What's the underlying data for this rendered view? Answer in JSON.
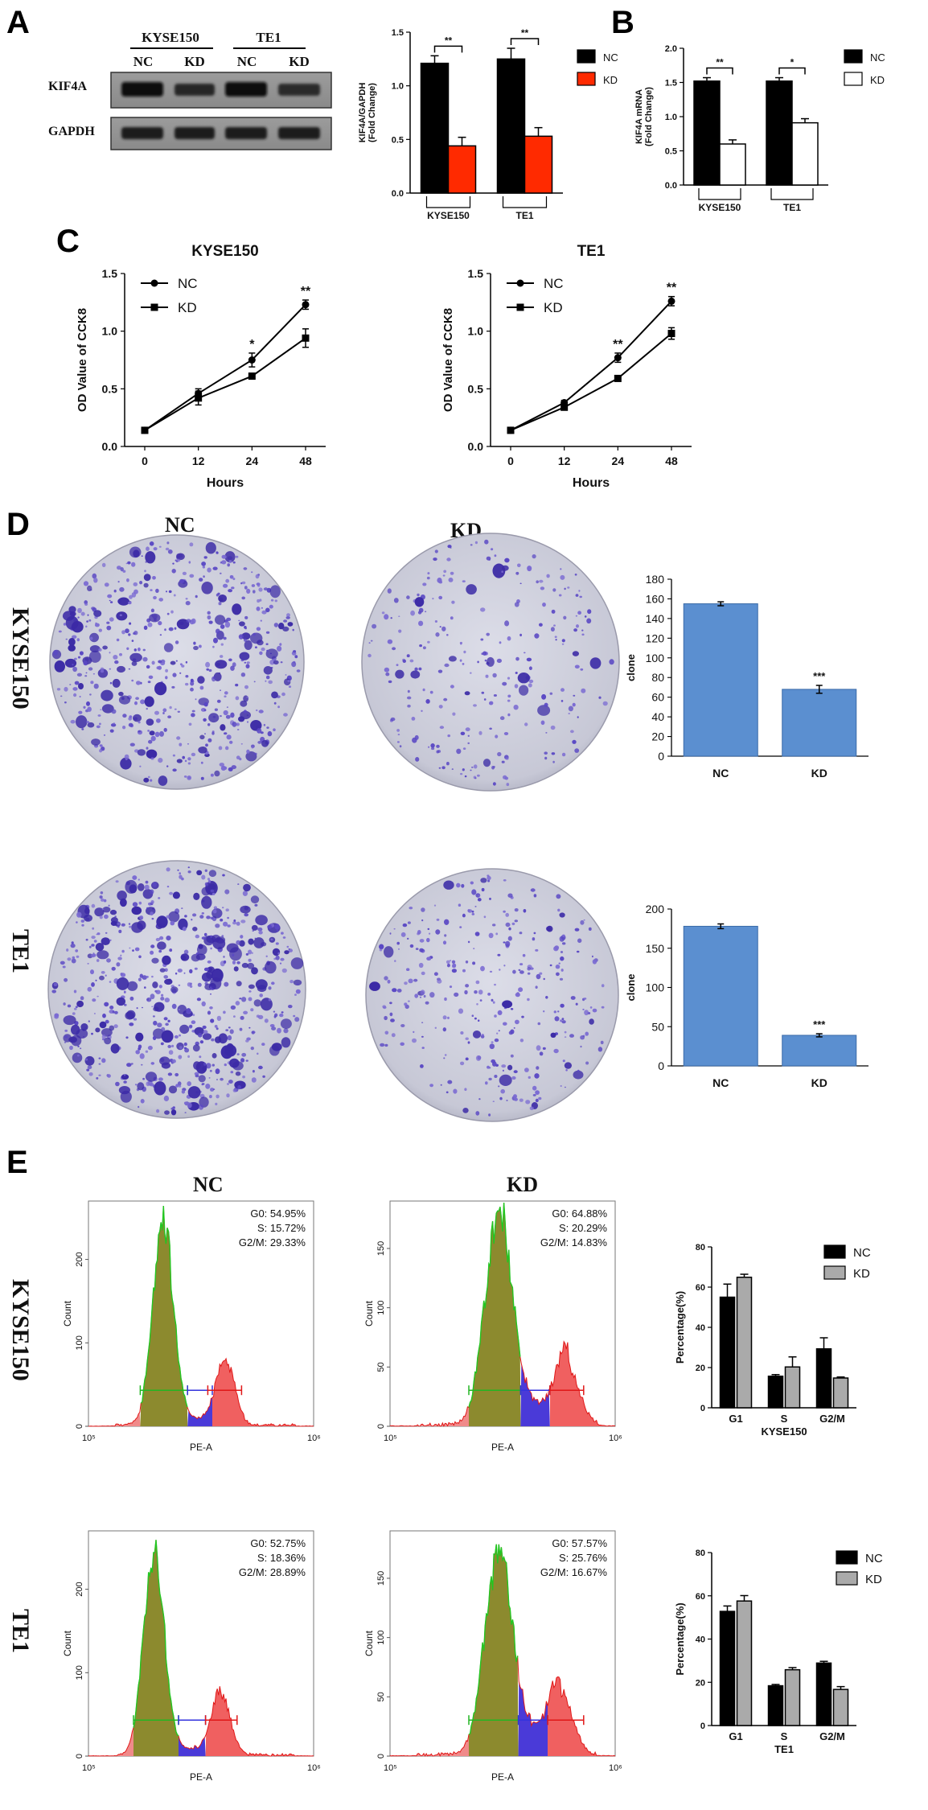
{
  "panels": {
    "A": "A",
    "B": "B",
    "C": "C",
    "D": "D",
    "E": "E"
  },
  "blot": {
    "groups": [
      "KYSE150",
      "TE1"
    ],
    "lanes": [
      "NC",
      "KD",
      "NC",
      "KD"
    ],
    "rows": [
      "KIF4A",
      "GAPDH"
    ]
  },
  "colonies": {
    "cols": [
      "NC",
      "KD"
    ],
    "rows": [
      "KYSE150",
      "TE1"
    ]
  },
  "flow": {
    "cols": [
      "NC",
      "KD"
    ],
    "rows": [
      "KYSE150",
      "TE1"
    ],
    "xlabel": "PE-A",
    "ylabel": "Count",
    "xtick_low": "10⁵",
    "xtick_high": "10⁶",
    "stats": [
      {
        "g0": "G0: 54.95%",
        "s": "S: 15.72%",
        "g2m": "G2/M: 29.33%"
      },
      {
        "g0": "G0: 64.88%",
        "s": "S: 20.29%",
        "g2m": "G2/M: 14.83%"
      },
      {
        "g0": "G0: 52.75%",
        "s": "S: 18.36%",
        "g2m": "G2/M: 28.89%"
      },
      {
        "g0": "G0: 57.57%",
        "s": "S: 25.76%",
        "g2m": "G2/M: 16.67%"
      }
    ],
    "yticks": [
      [
        "0",
        "100",
        "200"
      ],
      [
        "0",
        "50",
        "100",
        "150"
      ],
      [
        "0",
        "100",
        "200"
      ],
      [
        "0",
        "50",
        "100",
        "150"
      ]
    ]
  },
  "chart_data": [
    {
      "id": "A-bar",
      "type": "bar",
      "categories": [
        "KYSE150",
        "TE1"
      ],
      "series": [
        {
          "name": "NC",
          "values": [
            1.21,
            1.25
          ],
          "errors": [
            0.07,
            0.1
          ]
        },
        {
          "name": "KD",
          "values": [
            0.44,
            0.53
          ],
          "errors": [
            0.08,
            0.08
          ]
        }
      ],
      "ylabel": "KIF4A/GAPDH\n(Fold Change)",
      "yticks": [
        0.0,
        0.5,
        1.0,
        1.5
      ],
      "ylim": [
        0,
        1.5
      ],
      "significance": [
        "**",
        "**"
      ],
      "colors": {
        "NC": "#000000",
        "KD": "#ff2a00"
      }
    },
    {
      "id": "B-bar",
      "type": "bar",
      "categories": [
        "KYSE150",
        "TE1"
      ],
      "series": [
        {
          "name": "NC",
          "values": [
            1.52,
            1.52
          ],
          "errors": [
            0.05,
            0.05
          ]
        },
        {
          "name": "KD",
          "values": [
            0.6,
            0.91
          ],
          "errors": [
            0.06,
            0.06
          ]
        }
      ],
      "ylabel": "KIF4A mRNA\n(Fold Change)",
      "yticks": [
        0.0,
        0.5,
        1.0,
        1.5,
        2.0
      ],
      "ylim": [
        0,
        2.0
      ],
      "significance": [
        "**",
        "*"
      ],
      "colors": {
        "NC": "#000000",
        "KD": "#ffffff"
      }
    },
    {
      "id": "C-line-kyse",
      "type": "line",
      "title": "KYSE150",
      "x": [
        0,
        12,
        24,
        48
      ],
      "series": [
        {
          "name": "NC",
          "values": [
            0.14,
            0.46,
            0.75,
            1.23
          ],
          "errors": [
            0.02,
            0.04,
            0.06,
            0.04
          ]
        },
        {
          "name": "KD",
          "values": [
            0.14,
            0.42,
            0.61,
            0.94
          ],
          "errors": [
            0.02,
            0.06,
            0.02,
            0.08
          ]
        }
      ],
      "xlabel": "Hours",
      "ylabel": "OD Value of CCK8",
      "yticks": [
        0.0,
        0.5,
        1.0,
        1.5
      ],
      "ylim": [
        0,
        1.5
      ],
      "significance": [
        "",
        "",
        "*",
        "**"
      ]
    },
    {
      "id": "C-line-te1",
      "type": "line",
      "title": "TE1",
      "x": [
        0,
        12,
        24,
        48
      ],
      "series": [
        {
          "name": "NC",
          "values": [
            0.14,
            0.38,
            0.77,
            1.26
          ],
          "errors": [
            0.02,
            0.02,
            0.04,
            0.04
          ]
        },
        {
          "name": "KD",
          "values": [
            0.14,
            0.34,
            0.59,
            0.98
          ],
          "errors": [
            0.02,
            0.02,
            0.02,
            0.05
          ]
        }
      ],
      "xlabel": "Hours",
      "ylabel": "OD Value of CCK8",
      "yticks": [
        0.0,
        0.5,
        1.0,
        1.5
      ],
      "ylim": [
        0,
        1.5
      ],
      "significance": [
        "",
        "",
        "**",
        "**"
      ]
    },
    {
      "id": "D-bar-kyse",
      "type": "bar",
      "categories": [
        "NC",
        "KD"
      ],
      "values": [
        155,
        68
      ],
      "errors": [
        2,
        4
      ],
      "ylabel": "clone",
      "yticks": [
        0,
        20,
        40,
        60,
        80,
        100,
        120,
        140,
        160,
        180
      ],
      "ylim": [
        0,
        180
      ],
      "significance": [
        "",
        "***"
      ],
      "colors": {
        "bar": "#5b8fd0"
      }
    },
    {
      "id": "D-bar-te1",
      "type": "bar",
      "categories": [
        "NC",
        "KD"
      ],
      "values": [
        178,
        39
      ],
      "errors": [
        3,
        2
      ],
      "ylabel": "clone",
      "yticks": [
        0,
        50,
        100,
        150,
        200
      ],
      "ylim": [
        0,
        200
      ],
      "significance": [
        "",
        "***"
      ],
      "colors": {
        "bar": "#5b8fd0"
      }
    },
    {
      "id": "E-bar-kyse",
      "type": "bar",
      "categories": [
        "G1",
        "S",
        "G2/M"
      ],
      "series": [
        {
          "name": "NC",
          "values": [
            55,
            15.7,
            29.3
          ],
          "errors": [
            6.5,
            0.8,
            5.5
          ]
        },
        {
          "name": "KD",
          "values": [
            64.9,
            20.3,
            14.8
          ],
          "errors": [
            1.5,
            5,
            0.5
          ]
        }
      ],
      "xlabel": "KYSE150",
      "ylabel": "Percentage(%)",
      "yticks": [
        0,
        20,
        40,
        60,
        80
      ],
      "ylim": [
        0,
        80
      ],
      "colors": {
        "NC": "#000000",
        "KD": "#aaaaaa"
      }
    },
    {
      "id": "E-bar-te1",
      "type": "bar",
      "categories": [
        "G1",
        "S",
        "G2/M"
      ],
      "series": [
        {
          "name": "NC",
          "values": [
            52.8,
            18.4,
            28.9
          ],
          "errors": [
            2.5,
            0.6,
            0.8
          ]
        },
        {
          "name": "KD",
          "values": [
            57.6,
            25.8,
            16.7
          ],
          "errors": [
            2.5,
            1,
            1.3
          ]
        }
      ],
      "xlabel": "TE1",
      "ylabel": "Percentage(%)",
      "yticks": [
        0,
        20,
        40,
        60,
        80
      ],
      "ylim": [
        0,
        80
      ],
      "colors": {
        "NC": "#000000",
        "KD": "#aaaaaa"
      }
    }
  ]
}
